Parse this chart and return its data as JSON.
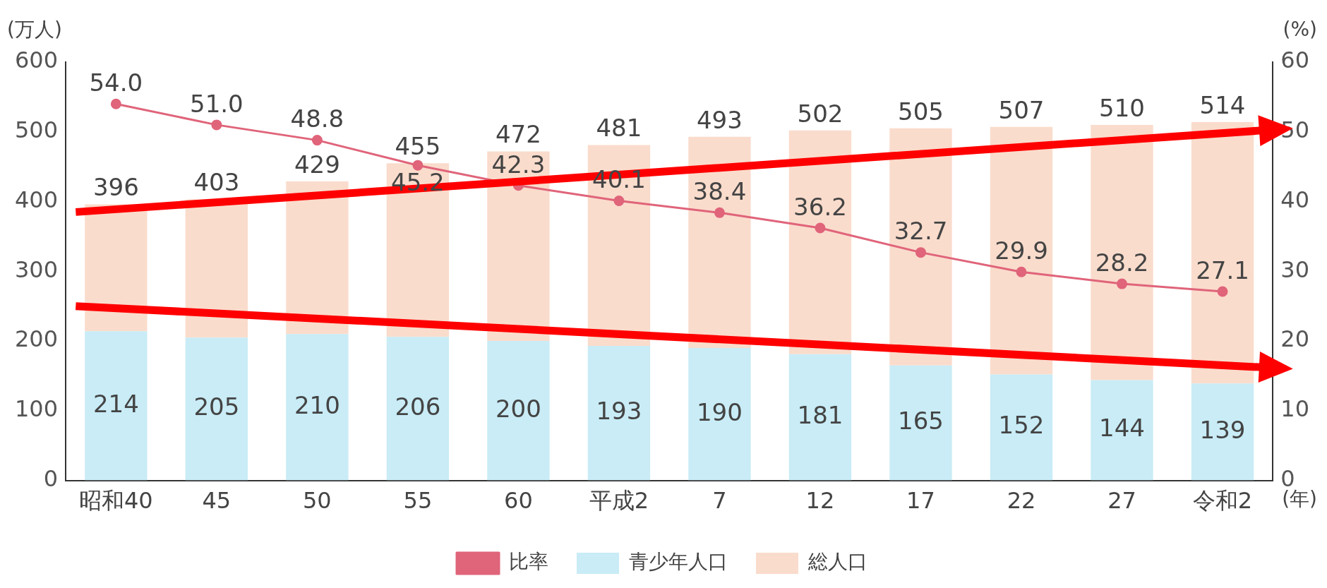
{
  "chart_data": {
    "type": "bar",
    "stacked": true,
    "categories": [
      "昭和40",
      "45",
      "50",
      "55",
      "60",
      "平成2",
      "7",
      "12",
      "17",
      "22",
      "27",
      "令和2"
    ],
    "ylabel": "(万人)",
    "y2label": "(%)",
    "xlabel": "(年)",
    "ylim": [
      0,
      600
    ],
    "yticks": [
      0,
      100,
      200,
      300,
      400,
      500,
      600
    ],
    "y2lim": [
      0,
      60
    ],
    "y2ticks": [
      0,
      10,
      20,
      30,
      40,
      50,
      60
    ],
    "series": [
      {
        "name": "青少年人口",
        "color": "#c9ecf6",
        "values": [
          214,
          205,
          210,
          206,
          200,
          193,
          190,
          181,
          165,
          152,
          144,
          139
        ],
        "value_labels": [
          "214",
          "205",
          "210",
          "206",
          "200",
          "193",
          "190",
          "181",
          "165",
          "152",
          "144",
          "139"
        ]
      },
      {
        "name": "総人口",
        "color": "#fadccc",
        "values": [
          182,
          198,
          219,
          249,
          272,
          288,
          303,
          321,
          340,
          355,
          366,
          375
        ]
      },
      {
        "name": "比率",
        "type": "line",
        "axis": "y2",
        "color": "#e0647a",
        "marker": "circle",
        "values": [
          54.0,
          51.0,
          48.8,
          45.2,
          42.3,
          40.1,
          38.4,
          36.2,
          32.7,
          29.9,
          28.2,
          27.1
        ],
        "value_labels": [
          "54.0",
          "51.0",
          "48.8",
          "45.2",
          "42.3",
          "40.1",
          "38.4",
          "36.2",
          "32.7",
          "29.9",
          "28.2",
          "27.1"
        ]
      }
    ],
    "totals": [
      "396",
      "403",
      "429",
      "455",
      "472",
      "481",
      "493",
      "502",
      "505",
      "507",
      "510",
      "514"
    ],
    "legend": "bottom",
    "grid": false
  }
}
